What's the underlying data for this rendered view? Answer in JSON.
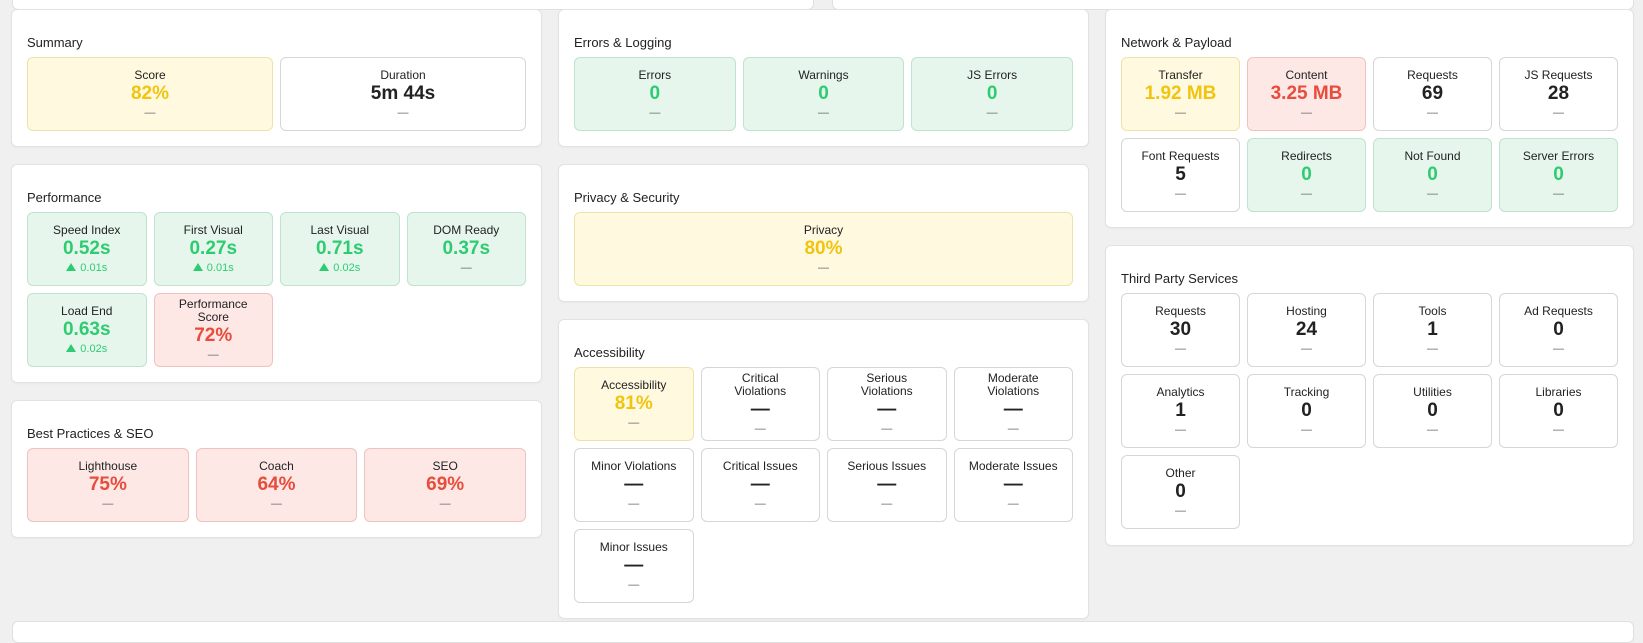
{
  "summary": {
    "title": "Summary",
    "tiles": [
      {
        "label": "Score",
        "value": "82%",
        "delta": "—"
      },
      {
        "label": "Duration",
        "value": "5m 44s",
        "delta": "—"
      }
    ]
  },
  "performance": {
    "title": "Performance",
    "tiles": [
      {
        "label": "Speed Index",
        "value": "0.52s",
        "delta": "0.01s"
      },
      {
        "label": "First Visual",
        "value": "0.27s",
        "delta": "0.01s"
      },
      {
        "label": "Last Visual",
        "value": "0.71s",
        "delta": "0.02s"
      },
      {
        "label": "DOM Ready",
        "value": "0.37s",
        "delta": "—"
      },
      {
        "label": "Load End",
        "value": "0.63s",
        "delta": "0.02s"
      },
      {
        "label": "Performance Score",
        "value": "72%",
        "delta": "—"
      }
    ]
  },
  "best_practices": {
    "title": "Best Practices & SEO",
    "tiles": [
      {
        "label": "Lighthouse",
        "value": "75%",
        "delta": "—"
      },
      {
        "label": "Coach",
        "value": "64%",
        "delta": "—"
      },
      {
        "label": "SEO",
        "value": "69%",
        "delta": "—"
      }
    ]
  },
  "errors": {
    "title": "Errors & Logging",
    "tiles": [
      {
        "label": "Errors",
        "value": "0",
        "delta": "—"
      },
      {
        "label": "Warnings",
        "value": "0",
        "delta": "—"
      },
      {
        "label": "JS Errors",
        "value": "0",
        "delta": "—"
      }
    ]
  },
  "privacy": {
    "title": "Privacy & Security",
    "tiles": [
      {
        "label": "Privacy",
        "value": "80%",
        "delta": "—"
      }
    ]
  },
  "accessibility": {
    "title": "Accessibility",
    "tiles": [
      {
        "label": "Accessibility",
        "value": "81%",
        "delta": "—"
      },
      {
        "label": "Critical Violations",
        "value": "—",
        "delta": "—"
      },
      {
        "label": "Serious Violations",
        "value": "—",
        "delta": "—"
      },
      {
        "label": "Moderate Violations",
        "value": "—",
        "delta": "—"
      },
      {
        "label": "Minor Violations",
        "value": "—",
        "delta": "—"
      },
      {
        "label": "Critical Issues",
        "value": "—",
        "delta": "—"
      },
      {
        "label": "Serious Issues",
        "value": "—",
        "delta": "—"
      },
      {
        "label": "Moderate Issues",
        "value": "—",
        "delta": "—"
      },
      {
        "label": "Minor Issues",
        "value": "—",
        "delta": "—"
      }
    ]
  },
  "network": {
    "title": "Network & Payload",
    "tiles": [
      {
        "label": "Transfer",
        "value": "1.92 MB",
        "delta": "—"
      },
      {
        "label": "Content",
        "value": "3.25 MB",
        "delta": "—"
      },
      {
        "label": "Requests",
        "value": "69",
        "delta": "—"
      },
      {
        "label": "JS Requests",
        "value": "28",
        "delta": "—"
      },
      {
        "label": "Font Requests",
        "value": "5",
        "delta": "—"
      },
      {
        "label": "Redirects",
        "value": "0",
        "delta": "—"
      },
      {
        "label": "Not Found",
        "value": "0",
        "delta": "—"
      },
      {
        "label": "Server Errors",
        "value": "0",
        "delta": "—"
      }
    ]
  },
  "third_party": {
    "title": "Third Party Services",
    "tiles": [
      {
        "label": "Requests",
        "value": "30",
        "delta": "—"
      },
      {
        "label": "Hosting",
        "value": "24",
        "delta": "—"
      },
      {
        "label": "Tools",
        "value": "1",
        "delta": "—"
      },
      {
        "label": "Ad Requests",
        "value": "0",
        "delta": "—"
      },
      {
        "label": "Analytics",
        "value": "1",
        "delta": "—"
      },
      {
        "label": "Tracking",
        "value": "0",
        "delta": "—"
      },
      {
        "label": "Utilities",
        "value": "0",
        "delta": "—"
      },
      {
        "label": "Libraries",
        "value": "0",
        "delta": "—"
      },
      {
        "label": "Other",
        "value": "0",
        "delta": "—"
      }
    ]
  },
  "colors": {
    "good": "#2ecc71",
    "warn": "#f1c40f",
    "bad": "#e74c3c",
    "good_bg": "#e6f6ec",
    "warn_bg": "#fff9e0",
    "bad_bg": "#fde8e6"
  }
}
